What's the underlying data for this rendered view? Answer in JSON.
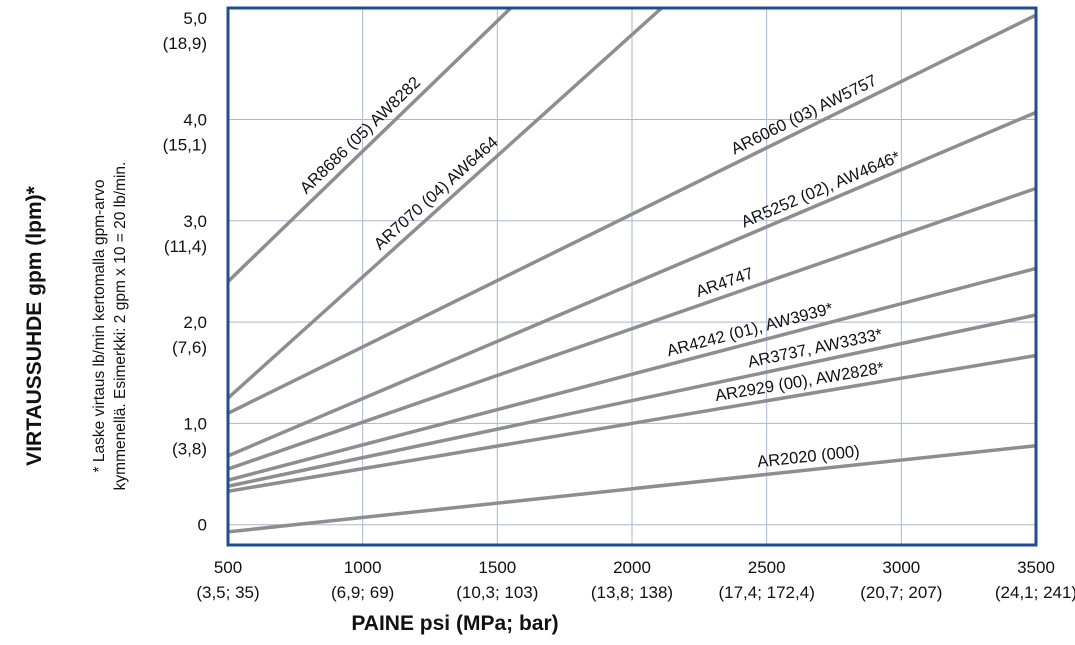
{
  "chart_data": {
    "type": "line",
    "xlabel": "PAINE psi (MPa; bar)",
    "ylabel": "VIRTAUSSUHDE gpm (lpm)*",
    "note_lines": [
      "* Laske virtaus lb/min kertomalla gpm-arvo",
      "kymmenellä. Esimerkki: 2 gpm x 10 = 20 lb/min."
    ],
    "xlim": [
      500,
      3500
    ],
    "ylim": [
      -0.2,
      5.1
    ],
    "grid": true,
    "x_ticks": [
      {
        "value": 500,
        "label": "500",
        "sub": "(3,5; 35)"
      },
      {
        "value": 1000,
        "label": "1000",
        "sub": "(6,9; 69)"
      },
      {
        "value": 1500,
        "label": "1500",
        "sub": "(10,3; 103)"
      },
      {
        "value": 2000,
        "label": "2000",
        "sub": "(13,8; 138)"
      },
      {
        "value": 2500,
        "label": "2500",
        "sub": "(17,4; 172,4)"
      },
      {
        "value": 3000,
        "label": "3000",
        "sub": "(20,7; 207)"
      },
      {
        "value": 3500,
        "label": "3500",
        "sub": "(24,1; 241)"
      }
    ],
    "y_ticks": [
      {
        "value": 0,
        "label": "0",
        "sub": ""
      },
      {
        "value": 1,
        "label": "1,0",
        "sub": "(3,8)"
      },
      {
        "value": 2,
        "label": "2,0",
        "sub": "(7,6)"
      },
      {
        "value": 3,
        "label": "3,0",
        "sub": "(11,4)"
      },
      {
        "value": 4,
        "label": "4,0",
        "sub": "(15,1)"
      },
      {
        "value": 5,
        "label": "5,0",
        "sub": "(18,9)"
      }
    ],
    "series": [
      {
        "name": "AR8686 (05) AW8282",
        "x": [
          500,
          1550
        ],
        "y": [
          2.4,
          5.1
        ],
        "label_at": 0.5
      },
      {
        "name": "AR7070 (04) AW6464",
        "x": [
          500,
          2110
        ],
        "y": [
          1.25,
          5.1
        ],
        "label_at": 0.5
      },
      {
        "name": "AR6060 (03) AW5757",
        "x": [
          500,
          3500
        ],
        "y": [
          1.1,
          5.03
        ],
        "label_at": 0.72
      },
      {
        "name": "AR5252 (02), AW4646*",
        "x": [
          500,
          3500
        ],
        "y": [
          0.68,
          4.07
        ],
        "label_at": 0.74
      },
      {
        "name": "AR4747",
        "x": [
          500,
          3500
        ],
        "y": [
          0.55,
          3.32
        ],
        "label_at": 0.62
      },
      {
        "name": "AR4242 (01), AW3939*",
        "x": [
          500,
          3500
        ],
        "y": [
          0.44,
          2.53
        ],
        "label_at": 0.65
      },
      {
        "name": "AR3737, AW3333*",
        "x": [
          500,
          3500
        ],
        "y": [
          0.38,
          2.07
        ],
        "label_at": 0.73
      },
      {
        "name": "AR2929 (00), AW2828*",
        "x": [
          500,
          3500
        ],
        "y": [
          0.33,
          1.67
        ],
        "label_at": 0.71
      },
      {
        "name": "AR2020 (000)",
        "x": [
          500,
          3500
        ],
        "y": [
          -0.07,
          0.78
        ],
        "label_at": 0.72
      }
    ]
  }
}
